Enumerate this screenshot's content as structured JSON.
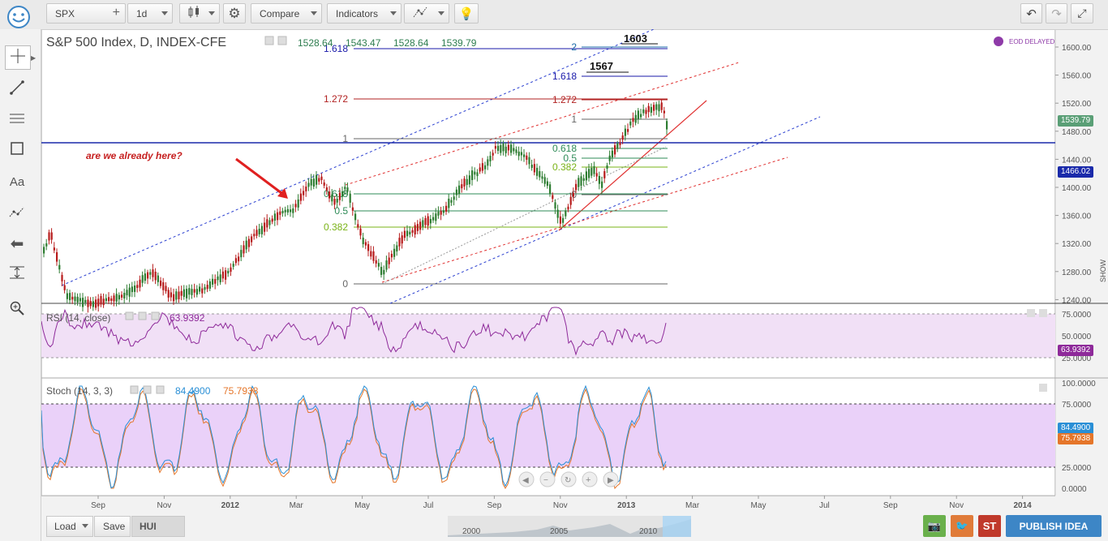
{
  "toolbar": {
    "symbol": "SPX",
    "interval": "1d",
    "compare": "Compare",
    "indicators": "Indicators"
  },
  "chart": {
    "title": "S&P 500 Index, D, INDEX-CFE",
    "ohlc": [
      "1528.64",
      "1543.47",
      "1528.64",
      "1539.79"
    ],
    "eod_badge": "EOD DELAYED",
    "annotation_text": "are we already here?",
    "label_1603": "1603",
    "label_1567": "1567",
    "last_price": "1539.79",
    "line_price": "1466.02",
    "show_label": "SHOW",
    "price_axis": [
      "1600.00",
      "1560.00",
      "1520.00",
      "1480.00",
      "1440.00",
      "1400.00",
      "1360.00",
      "1320.00",
      "1280.00",
      "1240.00"
    ],
    "fib_left": [
      {
        "label": "1.618",
        "color": "#1a1aaa"
      },
      {
        "label": "1.272",
        "color": "#b22222"
      },
      {
        "label": "1",
        "color": "#666666"
      },
      {
        "label": "0.618",
        "color": "#2e8b57"
      },
      {
        "label": "0.5",
        "color": "#2e8b57"
      },
      {
        "label": "0.382",
        "color": "#7ab317"
      },
      {
        "label": "0",
        "color": "#666666"
      }
    ],
    "fib_right": [
      {
        "label": "2",
        "color": "#1a6aa8"
      },
      {
        "label": "1.618",
        "color": "#1a1aaa"
      },
      {
        "label": "1.272",
        "color": "#b22222"
      },
      {
        "label": "1",
        "color": "#666666"
      },
      {
        "label": "0.618",
        "color": "#2e8b57"
      },
      {
        "label": "0.5",
        "color": "#2e8b57"
      },
      {
        "label": "0.382",
        "color": "#7ab317"
      },
      {
        "label": "0",
        "color": "#666666"
      }
    ],
    "time_axis": [
      "Sep",
      "Nov",
      "2012",
      "Mar",
      "May",
      "Jul",
      "Sep",
      "Nov",
      "2013",
      "Mar",
      "May",
      "Jul",
      "Sep",
      "Nov",
      "2014"
    ]
  },
  "rsi": {
    "title": "RSI (14, close)",
    "value": "63.9392",
    "axis": [
      "75.0000",
      "50.0000",
      "25.0000"
    ]
  },
  "stoch": {
    "title": "Stoch (14, 3, 3)",
    "k_value": "84.4900",
    "d_value": "75.7938",
    "axis": [
      "100.0000",
      "75.0000",
      "50.0000",
      "25.0000",
      "0.0000"
    ]
  },
  "bottom": {
    "load": "Load",
    "save": "Save",
    "hui": "HUI",
    "publish": "PUBLISH IDEA",
    "nav_years": [
      "2000",
      "2005",
      "2010"
    ]
  },
  "colors": {
    "accent": "#3d86c6",
    "rsi_line": "#8e2a9a",
    "stoch_k": "#2a8fd6",
    "stoch_d": "#e5762a",
    "candle_up": "#2e7d32",
    "candle_down": "#b71c1c"
  }
}
